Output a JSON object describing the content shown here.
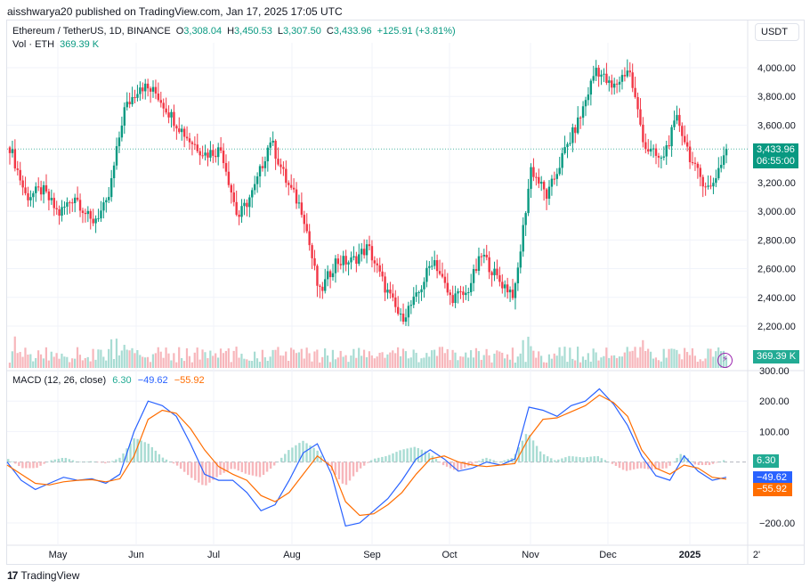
{
  "header": {
    "publish_line": "aisshwarya20 published on TradingView.com, Jan 17, 2025 17:05 UTC"
  },
  "legend": {
    "symbol": "Ethereum / TetherUS, 1D, BINANCE",
    "open_label": "O",
    "open": "3,308.04",
    "high_label": "H",
    "high": "3,450.53",
    "low_label": "L",
    "low": "3,307.50",
    "close_label": "C",
    "close": "3,433.96",
    "change": "+125.91 (+3.81%)",
    "vol_label": "Vol · ETH",
    "vol_value": "369.39 K"
  },
  "currency_button": "USDT",
  "price_tag": {
    "price": "3,433.96",
    "countdown": "06:55:00"
  },
  "volume_tag": "369.39 K",
  "macd": {
    "label": "MACD (12, 26, close)",
    "hist": "6.30",
    "macd": "−49.62",
    "signal": "−55.92"
  },
  "footer": {
    "logo": "17",
    "brand": "TradingView"
  },
  "colors": {
    "up": "#089981",
    "down": "#f23645",
    "up_light": "#a8dcd3",
    "down_light": "#f7b6bb",
    "macd_line": "#2962ff",
    "signal_line": "#ff6d00",
    "tag_green": "#089981",
    "tag_blue": "#2962ff",
    "tag_orange": "#ff6d00"
  },
  "chart_data": [
    {
      "type": "candlestick",
      "title": "Ethereum / TetherUS, 1D, BINANCE",
      "xlabel": "",
      "ylabel": "USDT",
      "y_ticks": [
        "4,000.00",
        "3,800.00",
        "3,600.00",
        "3,200.00",
        "3,000.00",
        "2,800.00",
        "2,600.00",
        "2,400.00",
        "2,200.00"
      ],
      "x_ticks": [
        "May",
        "Jun",
        "Jul",
        "Aug",
        "Sep",
        "Oct",
        "Nov",
        "Dec",
        "2025",
        "2'"
      ],
      "ylim": [
        2100,
        4150
      ],
      "current": {
        "open": 3308.04,
        "high": 3450.53,
        "low": 3307.5,
        "close": 3433.96,
        "change": 125.91,
        "change_pct": 3.81
      },
      "approx_close_path": [
        {
          "x": "Apr 17",
          "y": 3450
        },
        {
          "x": "Apr 20",
          "y": 3100
        },
        {
          "x": "Apr 26",
          "y": 3150
        },
        {
          "x": "May 1",
          "y": 2980
        },
        {
          "x": "May 6",
          "y": 3110
        },
        {
          "x": "May 12",
          "y": 2920
        },
        {
          "x": "May 19",
          "y": 3050
        },
        {
          "x": "May 21",
          "y": 3700
        },
        {
          "x": "May 27",
          "y": 3880
        },
        {
          "x": "Jun 5",
          "y": 3820
        },
        {
          "x": "Jun 10",
          "y": 3650
        },
        {
          "x": "Jun 17",
          "y": 3500
        },
        {
          "x": "Jun 24",
          "y": 3400
        },
        {
          "x": "Jun 30",
          "y": 3430
        },
        {
          "x": "Jul 5",
          "y": 2950
        },
        {
          "x": "Jul 12",
          "y": 3150
        },
        {
          "x": "Jul 20",
          "y": 3500
        },
        {
          "x": "Jul 25",
          "y": 3200
        },
        {
          "x": "Aug 1",
          "y": 3000
        },
        {
          "x": "Aug 5",
          "y": 2420
        },
        {
          "x": "Aug 9",
          "y": 2650
        },
        {
          "x": "Aug 15",
          "y": 2650
        },
        {
          "x": "Aug 24",
          "y": 2750
        },
        {
          "x": "Aug 28",
          "y": 2480
        },
        {
          "x": "Sep 6",
          "y": 2250
        },
        {
          "x": "Sep 15",
          "y": 2400
        },
        {
          "x": "Sep 27",
          "y": 2680
        },
        {
          "x": "Oct 2",
          "y": 2400
        },
        {
          "x": "Oct 10",
          "y": 2420
        },
        {
          "x": "Oct 20",
          "y": 2700
        },
        {
          "x": "Oct 28",
          "y": 2520
        },
        {
          "x": "Nov 4",
          "y": 2420
        },
        {
          "x": "Nov 12",
          "y": 3300
        },
        {
          "x": "Nov 18",
          "y": 3100
        },
        {
          "x": "Nov 25",
          "y": 3400
        },
        {
          "x": "Dec 3",
          "y": 3650
        },
        {
          "x": "Dec 8",
          "y": 4000
        },
        {
          "x": "Dec 12",
          "y": 3850
        },
        {
          "x": "Dec 16",
          "y": 4000
        },
        {
          "x": "Dec 20",
          "y": 3450
        },
        {
          "x": "Dec 28",
          "y": 3350
        },
        {
          "x": "Jan 5",
          "y": 3650
        },
        {
          "x": "Jan 9",
          "y": 3300
        },
        {
          "x": "Jan 13",
          "y": 3150
        },
        {
          "x": "Jan 17",
          "y": 3434
        }
      ]
    },
    {
      "type": "bar",
      "title": "Volume (ETH)",
      "current": "369.39 K",
      "note": "daily volume bars colored by candle direction, spikes around late May, Aug 5, Nov, Dec 20"
    },
    {
      "type": "line",
      "title": "MACD (12, 26, close)",
      "y_ticks": [
        "300.00",
        "200.00",
        "100.00",
        "−200.00"
      ],
      "ylim": [
        -260,
        310
      ],
      "current": {
        "histogram": 6.3,
        "macd": -49.62,
        "signal": -55.92
      },
      "series": [
        {
          "name": "MACD",
          "color": "#2962ff",
          "values": [
            0,
            -60,
            -90,
            -70,
            -50,
            -60,
            -55,
            -70,
            -40,
            100,
            200,
            185,
            150,
            60,
            -40,
            -60,
            -60,
            -100,
            -160,
            -140,
            -60,
            30,
            60,
            -40,
            -210,
            -200,
            -160,
            -120,
            -60,
            10,
            40,
            10,
            -30,
            -20,
            0,
            -10,
            10,
            180,
            170,
            150,
            185,
            200,
            240,
            190,
            120,
            20,
            -45,
            -60,
            20,
            -30,
            -60,
            -50
          ]
        },
        {
          "name": "Signal",
          "color": "#ff6d00",
          "values": [
            -10,
            -40,
            -70,
            -75,
            -65,
            -60,
            -58,
            -65,
            -55,
            20,
            140,
            170,
            160,
            110,
            40,
            -15,
            -40,
            -60,
            -110,
            -130,
            -100,
            -40,
            20,
            -15,
            -130,
            -175,
            -170,
            -140,
            -100,
            -40,
            10,
            20,
            0,
            -10,
            -15,
            -10,
            -5,
            80,
            140,
            145,
            165,
            185,
            220,
            195,
            150,
            40,
            -20,
            -40,
            -10,
            -20,
            -50,
            -56
          ]
        }
      ]
    }
  ]
}
